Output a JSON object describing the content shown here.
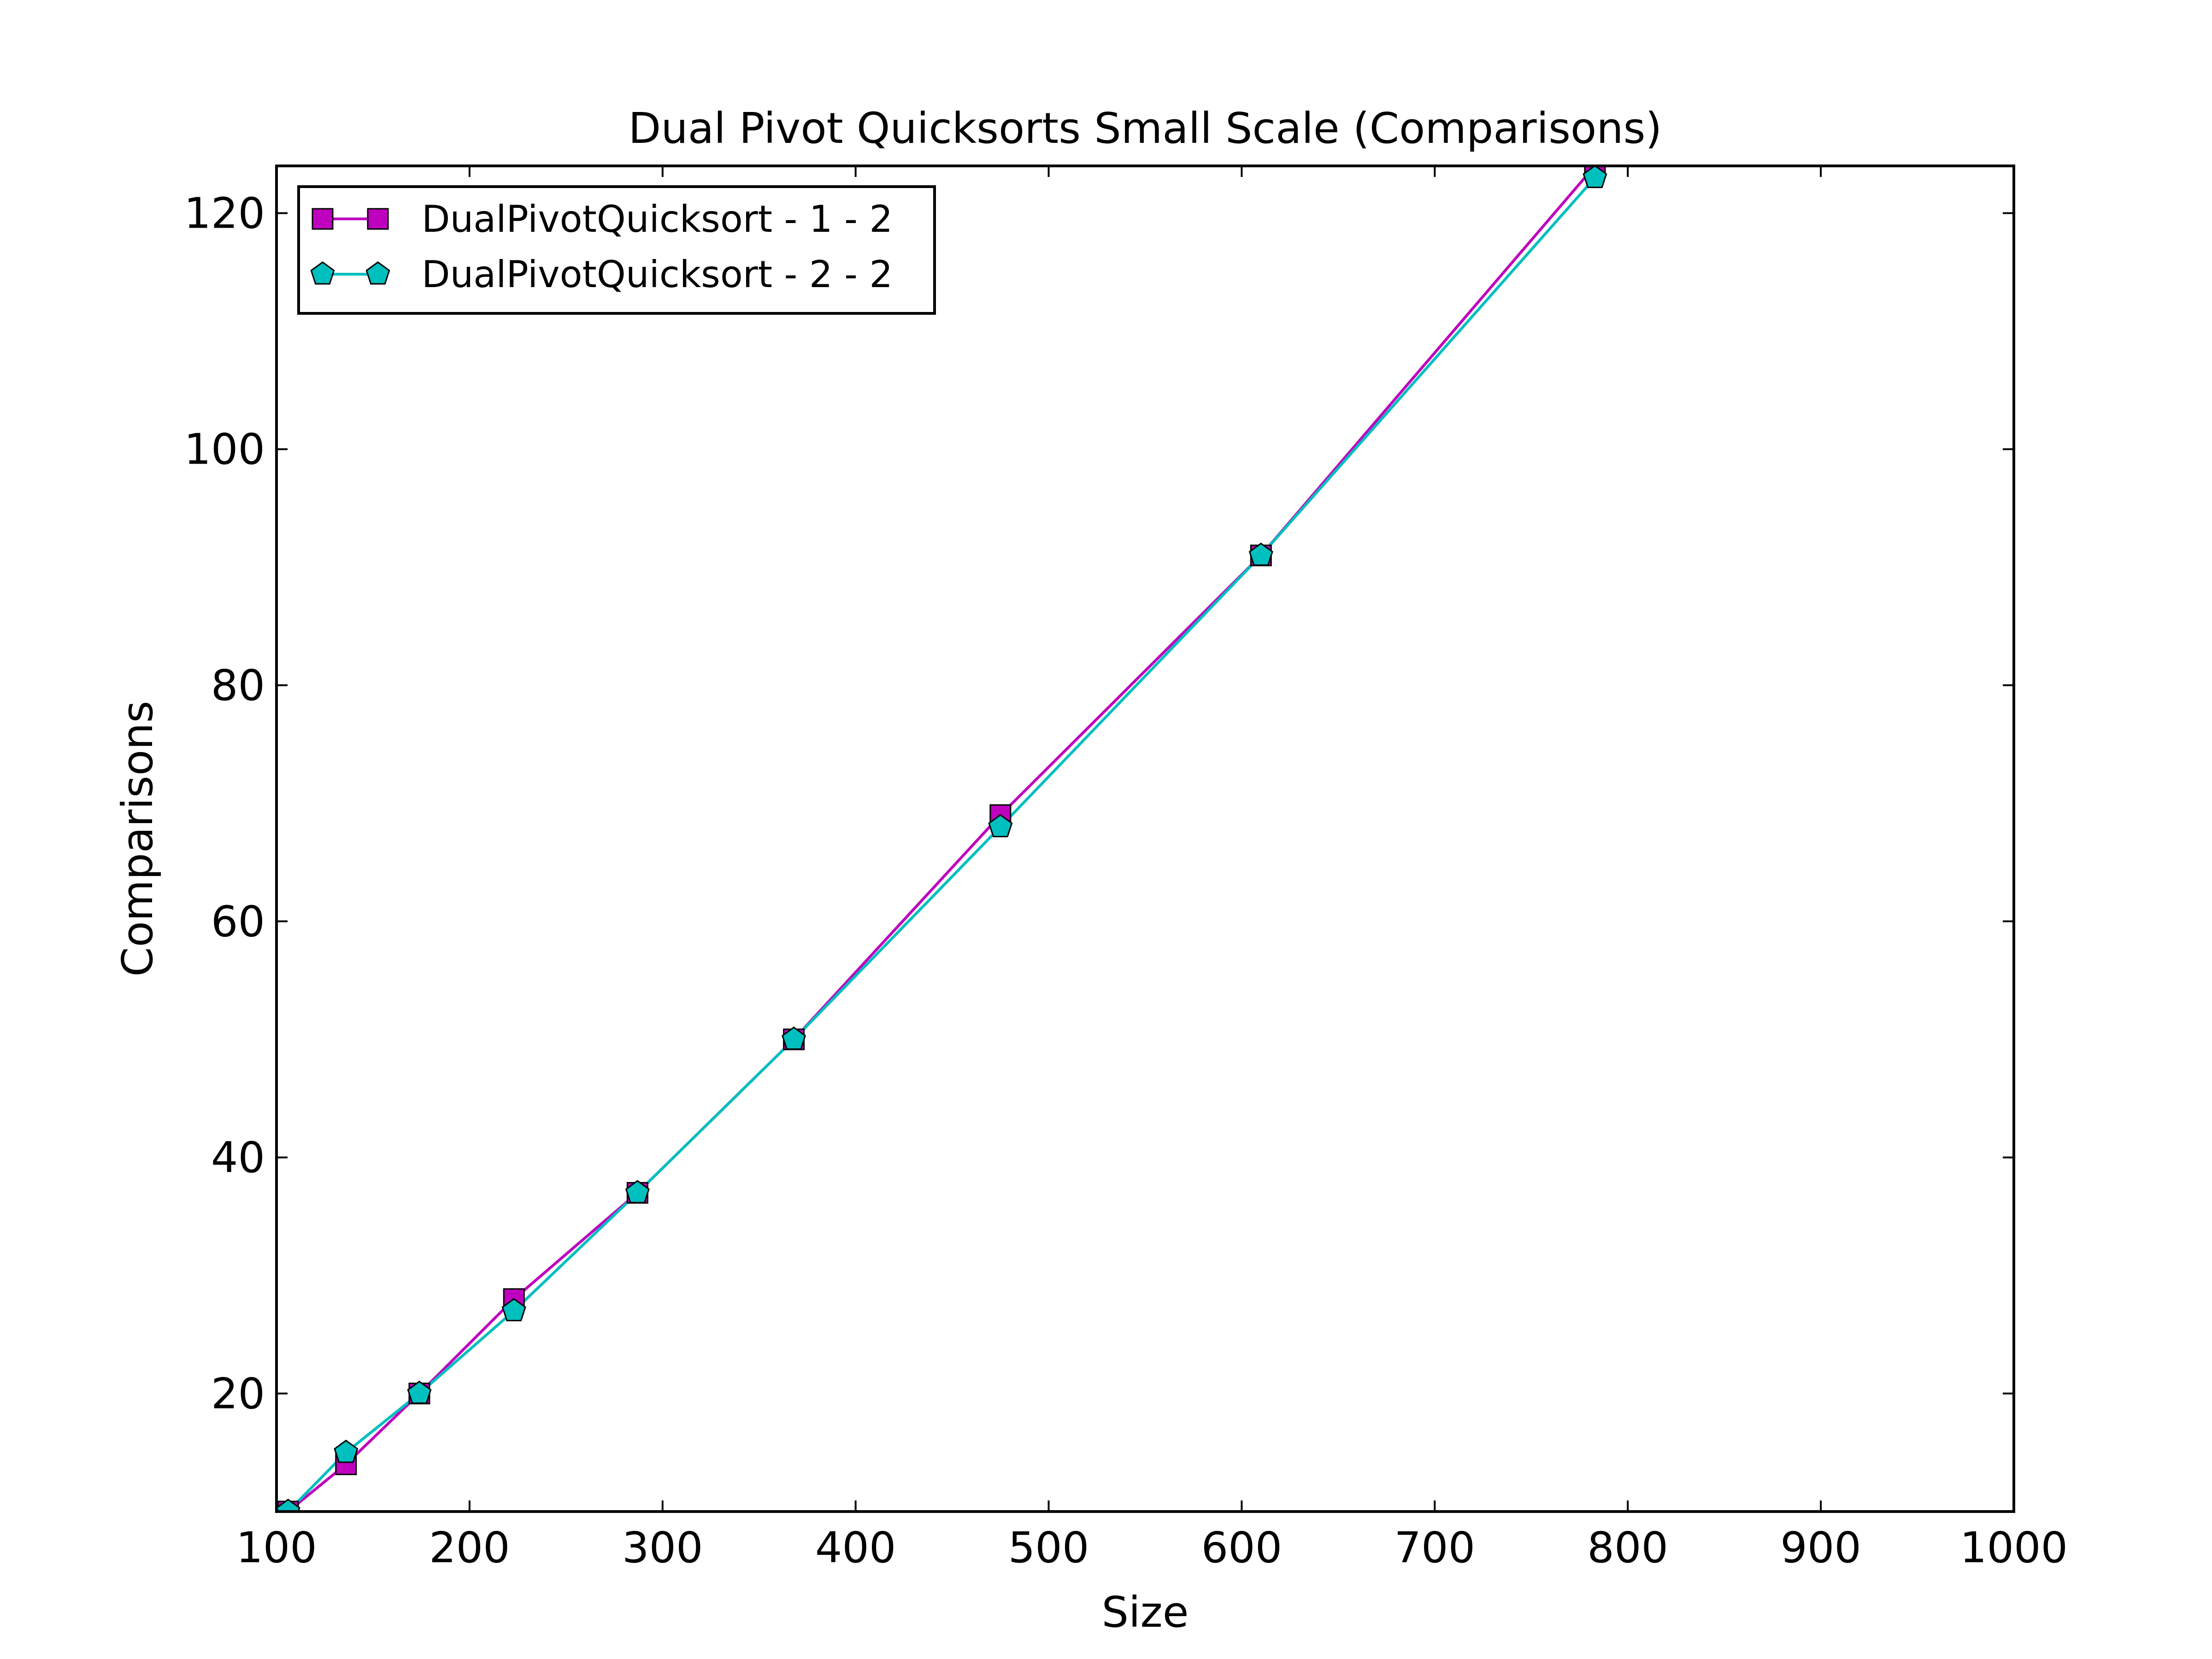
{
  "chart_data": {
    "type": "line",
    "title": "Dual Pivot Quicksorts Small Scale (Comparisons)",
    "xlabel": "Size",
    "ylabel": "Comparisons",
    "xlim": [
      100,
      1000
    ],
    "ylim": [
      10,
      124
    ],
    "xticks": [
      100,
      200,
      300,
      400,
      500,
      600,
      700,
      800,
      900,
      1000
    ],
    "yticks": [
      20,
      40,
      60,
      80,
      100,
      120
    ],
    "xtick_labels": [
      "100",
      "200",
      "300",
      "400",
      "500",
      "600",
      "700",
      "800",
      "900",
      "1000"
    ],
    "ytick_labels": [
      "20",
      "40",
      "60",
      "80",
      "100",
      "120"
    ],
    "grid": false,
    "legend_position": "top-left",
    "series": [
      {
        "name": "DualPivotQuicksort - 1 - 2",
        "color": "#bf00bf",
        "marker": "square",
        "x": [
          106,
          136,
          174,
          223,
          287,
          368,
          475,
          610,
          783
        ],
        "y": [
          10,
          14,
          20,
          28,
          37,
          50,
          69,
          91,
          124
        ]
      },
      {
        "name": "DualPivotQuicksort - 2 - 2",
        "color": "#00bfbf",
        "marker": "pentagon",
        "x": [
          106,
          136,
          174,
          223,
          287,
          368,
          475,
          610,
          783
        ],
        "y": [
          10,
          15,
          20,
          27,
          37,
          50,
          68,
          91,
          123
        ]
      }
    ]
  }
}
